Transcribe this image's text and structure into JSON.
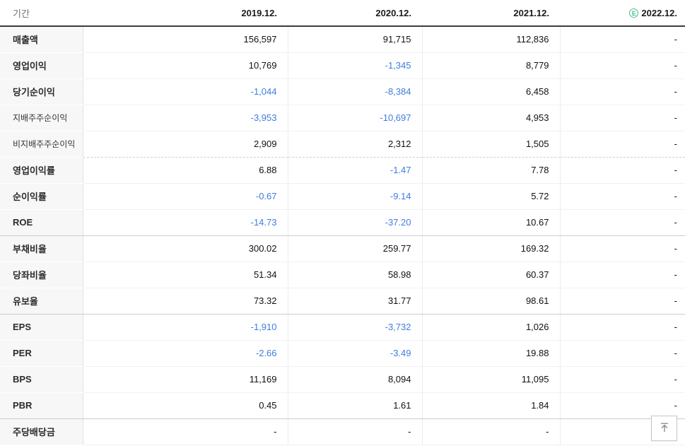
{
  "table": {
    "header": {
      "period_label": "기간",
      "columns": [
        {
          "label": "2019.12."
        },
        {
          "label": "2020.12."
        },
        {
          "label": "2021.12."
        },
        {
          "label": "2022.12.",
          "estimate_badge": "E"
        }
      ]
    },
    "rows": [
      {
        "label": "매출액",
        "values": [
          "156,597",
          "91,715",
          "112,836",
          "-"
        ],
        "divider": "none"
      },
      {
        "label": "영업이익",
        "values": [
          "10,769",
          "-1,345",
          "8,779",
          "-"
        ],
        "divider": "none"
      },
      {
        "label": "당기순이익",
        "values": [
          "-1,044",
          "-8,384",
          "6,458",
          "-"
        ],
        "divider": "none"
      },
      {
        "label": "지배주주순이익",
        "sub": true,
        "values": [
          "-3,953",
          "-10,697",
          "4,953",
          "-"
        ],
        "divider": "none"
      },
      {
        "label": "비지배주주순이익",
        "sub": true,
        "values": [
          "2,909",
          "2,312",
          "1,505",
          "-"
        ],
        "divider": "dashed"
      },
      {
        "label": "영업이익률",
        "values": [
          "6.88",
          "-1.47",
          "7.78",
          "-"
        ],
        "divider": "none"
      },
      {
        "label": "순이익률",
        "values": [
          "-0.67",
          "-9.14",
          "5.72",
          "-"
        ],
        "divider": "none"
      },
      {
        "label": "ROE",
        "values": [
          "-14.73",
          "-37.20",
          "10.67",
          "-"
        ],
        "divider": "solid"
      },
      {
        "label": "부채비율",
        "values": [
          "300.02",
          "259.77",
          "169.32",
          "-"
        ],
        "divider": "none"
      },
      {
        "label": "당좌비율",
        "values": [
          "51.34",
          "58.98",
          "60.37",
          "-"
        ],
        "divider": "none"
      },
      {
        "label": "유보율",
        "values": [
          "73.32",
          "31.77",
          "98.61",
          "-"
        ],
        "divider": "solid"
      },
      {
        "label": "EPS",
        "values": [
          "-1,910",
          "-3,732",
          "1,026",
          "-"
        ],
        "divider": "none"
      },
      {
        "label": "PER",
        "values": [
          "-2.66",
          "-3.49",
          "19.88",
          "-"
        ],
        "divider": "none"
      },
      {
        "label": "BPS",
        "values": [
          "11,169",
          "8,094",
          "11,095",
          "-"
        ],
        "divider": "none"
      },
      {
        "label": "PBR",
        "values": [
          "0.45",
          "1.61",
          "1.84",
          "-"
        ],
        "divider": "solid"
      },
      {
        "label": "주당배당금",
        "values": [
          "-",
          "-",
          "-",
          "-"
        ],
        "divider": "none"
      }
    ]
  },
  "colors": {
    "negative_value": "#3f7de0",
    "estimate_badge": "#45c08b",
    "header_border": "#3c3c3c"
  },
  "scroll_top_button": {
    "icon": "arrow-up-to-bar"
  }
}
